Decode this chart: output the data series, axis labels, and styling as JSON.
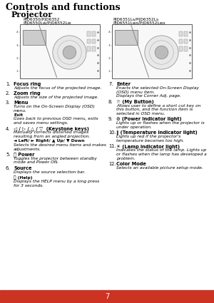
{
  "title": "Controls and functions",
  "subtitle": "Projector",
  "model_left_line1": "PJD6350/PJD6352",
  "model_left_line2": "PJD6550Lw/PJD6552Lw",
  "model_right_line1": "PJD6351Ls/PJD6352Ls",
  "model_right_line2": "PJD6551Lws/PJD6552Lws",
  "page_number": "7",
  "footer_color": "#CC3322",
  "footer_text_color": "#FFFFFF",
  "background_color": "#FFFFFF",
  "text_color": "#000000",
  "items_left": [
    {
      "num": "1.",
      "bold": "Focus ring",
      "lines": [
        {
          "text": "Adjusts the focus of the projected image.",
          "italic": true,
          "bold": false
        }
      ]
    },
    {
      "num": "2.",
      "bold": "Zoom ring",
      "lines": [
        {
          "text": "Adjusts the size of the projected image.",
          "italic": true,
          "bold": false
        }
      ]
    },
    {
      "num": "3.",
      "bold": "Menu",
      "lines": [
        {
          "text": "Turns on the On-Screen Display (OSD)",
          "italic": true,
          "bold": false
        },
        {
          "text": "menu.",
          "italic": true,
          "bold": false
        },
        {
          "text": "Exit",
          "italic": false,
          "bold": true
        },
        {
          "text": "Goes back to previous OSD menu, exits",
          "italic": true,
          "bold": false
        },
        {
          "text": "and saves menu settings.",
          "italic": true,
          "bold": false
        }
      ]
    },
    {
      "num": "4.",
      "bold": "◁ / ▷ / △ / ▽  (Keystone keys)",
      "lines": [
        {
          "text": "Manually corrects distorted images",
          "italic": true,
          "bold": false
        },
        {
          "text": "resulting from an angled projection.",
          "italic": true,
          "bold": false
        },
        {
          "text": "◄ Left/ ► Right/ ▲ Up/ ▼ Down",
          "italic": false,
          "bold": true
        },
        {
          "text": "Selects the desired menu items and makes",
          "italic": true,
          "bold": false
        },
        {
          "text": "adjustments.",
          "italic": true,
          "bold": false
        }
      ]
    },
    {
      "num": "5.",
      "bold": "⏻ Power",
      "lines": [
        {
          "text": "Toggles the projector between standby",
          "italic": true,
          "bold": false
        },
        {
          "text": "mode and Power ON.",
          "italic": true,
          "bold": false
        }
      ]
    },
    {
      "num": "6.",
      "bold": "Source",
      "lines": [
        {
          "text": "Displays the source selection bar.",
          "italic": true,
          "bold": false
        },
        {
          "text": "",
          "italic": false,
          "bold": false
        },
        {
          "text": "ⓘ (Help)",
          "italic": false,
          "bold": true
        },
        {
          "text": "Displays the HELP menu by a long press",
          "italic": true,
          "bold": false
        },
        {
          "text": "for 3 seconds.",
          "italic": true,
          "bold": false
        }
      ]
    }
  ],
  "items_right": [
    {
      "num": "7.",
      "bold": "Enter",
      "lines": [
        {
          "text": "Enacts the selected On-Screen Display",
          "italic": true,
          "bold": false
        },
        {
          "text": "(OSD) menu item.",
          "italic": true,
          "bold": false
        },
        {
          "text": "Displays the Corner Adj. page.",
          "italic": true,
          "bold": false
        }
      ]
    },
    {
      "num": "8.",
      "bold": "☆ (My Button)",
      "lines": [
        {
          "text": "Allows user to define a short cut key on",
          "italic": true,
          "bold": false
        },
        {
          "text": "this button, and the function item is",
          "italic": true,
          "bold": false
        },
        {
          "text": "selected in OSD menu.",
          "italic": true,
          "bold": false
        }
      ]
    },
    {
      "num": "9.",
      "bold": "⊙ (Power indicator light)",
      "lines": [
        {
          "text": "Lights up or flashes when the projector is",
          "italic": true,
          "bold": false
        },
        {
          "text": "under operation.",
          "italic": true,
          "bold": false
        }
      ]
    },
    {
      "num": "10.",
      "bold": "‖ (Temperature indicator light)",
      "lines": [
        {
          "text": "Lights up red if the projector's",
          "italic": true,
          "bold": false
        },
        {
          "text": "temperature becomes too high.",
          "italic": true,
          "bold": false
        }
      ]
    },
    {
      "num": "11.",
      "bold": "☀ (Lamp indicator light)",
      "lines": [
        {
          "text": "Indicates the status of the lamp. Lights up",
          "italic": true,
          "bold": false
        },
        {
          "text": "or flashes when the lamp has developed a",
          "italic": true,
          "bold": false
        },
        {
          "text": "problem.",
          "italic": true,
          "bold": false
        }
      ]
    },
    {
      "num": "12.",
      "bold": "Color Mode",
      "lines": [
        {
          "text": "Selects an available picture setup mode.",
          "italic": true,
          "bold": false
        }
      ]
    }
  ]
}
